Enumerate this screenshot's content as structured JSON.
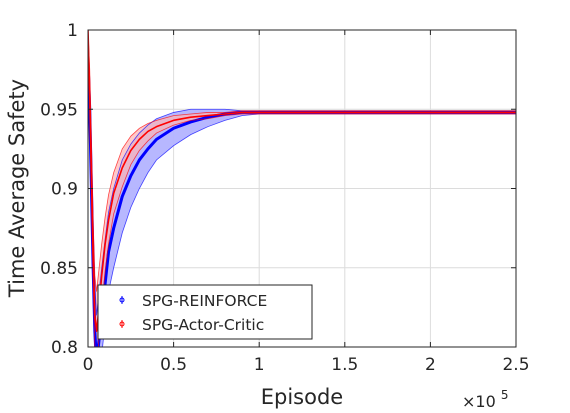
{
  "chart_data": {
    "type": "line",
    "title": "",
    "xlabel": "Episode",
    "ylabel": "Time Average Safety",
    "x_multiplier_label": "×10",
    "x_multiplier_exponent": "5",
    "xlim": [
      0,
      2.5
    ],
    "ylim": [
      0.8,
      1.0
    ],
    "xticks": [
      0,
      0.5,
      1,
      1.5,
      2,
      2.5
    ],
    "xtick_labels": [
      "0",
      "0.5",
      "1",
      "1.5",
      "2",
      "2.5"
    ],
    "yticks": [
      0.8,
      0.85,
      0.9,
      0.95,
      1.0
    ],
    "ytick_labels": [
      "0.8",
      "0.85",
      "0.9",
      "0.95",
      "1"
    ],
    "grid": true,
    "legend_position": "bottom-left",
    "series": [
      {
        "name": "SPG-REINFORCE",
        "color": "#0000ff",
        "band_color": "#b3b3ff",
        "x": [
          0,
          0.01,
          0.02,
          0.03,
          0.04,
          0.05,
          0.06,
          0.08,
          0.1,
          0.12,
          0.15,
          0.2,
          0.25,
          0.3,
          0.35,
          0.4,
          0.5,
          0.6,
          0.7,
          0.8,
          0.9,
          1.0,
          1.2,
          1.5,
          2.0,
          2.5
        ],
        "mean": [
          0.98,
          0.95,
          0.9,
          0.85,
          0.81,
          0.79,
          0.8,
          0.82,
          0.84,
          0.86,
          0.875,
          0.895,
          0.908,
          0.918,
          0.925,
          0.931,
          0.938,
          0.942,
          0.945,
          0.947,
          0.948,
          0.948,
          0.948,
          0.948,
          0.948,
          0.948
        ],
        "upper": [
          0.985,
          0.965,
          0.92,
          0.875,
          0.84,
          0.82,
          0.83,
          0.85,
          0.868,
          0.885,
          0.9,
          0.918,
          0.928,
          0.935,
          0.94,
          0.944,
          0.948,
          0.95,
          0.95,
          0.95,
          0.949,
          0.949,
          0.949,
          0.949,
          0.949,
          0.949
        ],
        "lower": [
          0.975,
          0.935,
          0.88,
          0.83,
          0.79,
          0.77,
          0.775,
          0.795,
          0.815,
          0.835,
          0.85,
          0.872,
          0.888,
          0.9,
          0.91,
          0.918,
          0.927,
          0.934,
          0.939,
          0.943,
          0.946,
          0.947,
          0.947,
          0.947,
          0.947,
          0.947
        ]
      },
      {
        "name": "SPG-Actor-Critic",
        "color": "#ff0000",
        "band_color": "#ffb3b3",
        "x": [
          0,
          0.01,
          0.02,
          0.03,
          0.04,
          0.05,
          0.06,
          0.08,
          0.1,
          0.12,
          0.15,
          0.2,
          0.25,
          0.3,
          0.35,
          0.4,
          0.5,
          0.6,
          0.7,
          0.8,
          0.9,
          1.0,
          1.2,
          1.5,
          2.0,
          2.5
        ],
        "mean": [
          1.0,
          0.96,
          0.91,
          0.86,
          0.82,
          0.81,
          0.82,
          0.845,
          0.865,
          0.88,
          0.897,
          0.913,
          0.924,
          0.931,
          0.936,
          0.939,
          0.943,
          0.945,
          0.946,
          0.947,
          0.948,
          0.948,
          0.948,
          0.948,
          0.948,
          0.948
        ],
        "upper": [
          1.0,
          0.975,
          0.93,
          0.88,
          0.845,
          0.835,
          0.845,
          0.865,
          0.882,
          0.896,
          0.91,
          0.925,
          0.933,
          0.938,
          0.941,
          0.943,
          0.946,
          0.947,
          0.948,
          0.948,
          0.949,
          0.949,
          0.949,
          0.949,
          0.949,
          0.949
        ],
        "lower": [
          1.0,
          0.945,
          0.89,
          0.84,
          0.8,
          0.79,
          0.8,
          0.825,
          0.848,
          0.865,
          0.884,
          0.901,
          0.915,
          0.924,
          0.93,
          0.935,
          0.94,
          0.943,
          0.944,
          0.946,
          0.947,
          0.947,
          0.947,
          0.947,
          0.947,
          0.947
        ]
      }
    ]
  }
}
